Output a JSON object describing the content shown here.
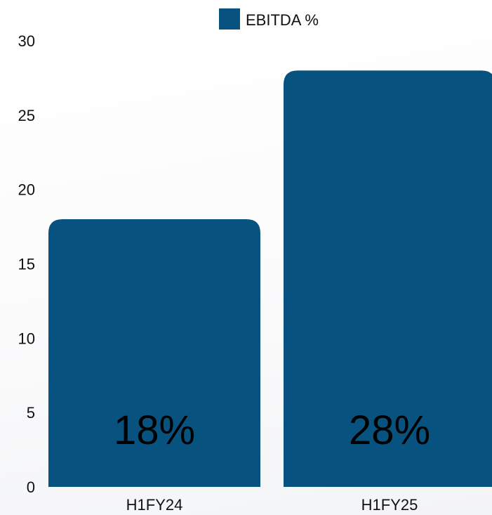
{
  "chart_data": {
    "type": "bar",
    "categories": [
      "H1FY24",
      "H1FY25"
    ],
    "series": [
      {
        "name": "EBITDA %",
        "values": [
          18,
          28
        ],
        "color": "#08527f"
      }
    ],
    "data_labels": [
      "18%",
      "28%"
    ],
    "y_ticks": [
      "0",
      "5",
      "10",
      "15",
      "20",
      "25",
      "30"
    ],
    "ylim": [
      0,
      30
    ],
    "grid": false,
    "legend_position": "top-center"
  }
}
